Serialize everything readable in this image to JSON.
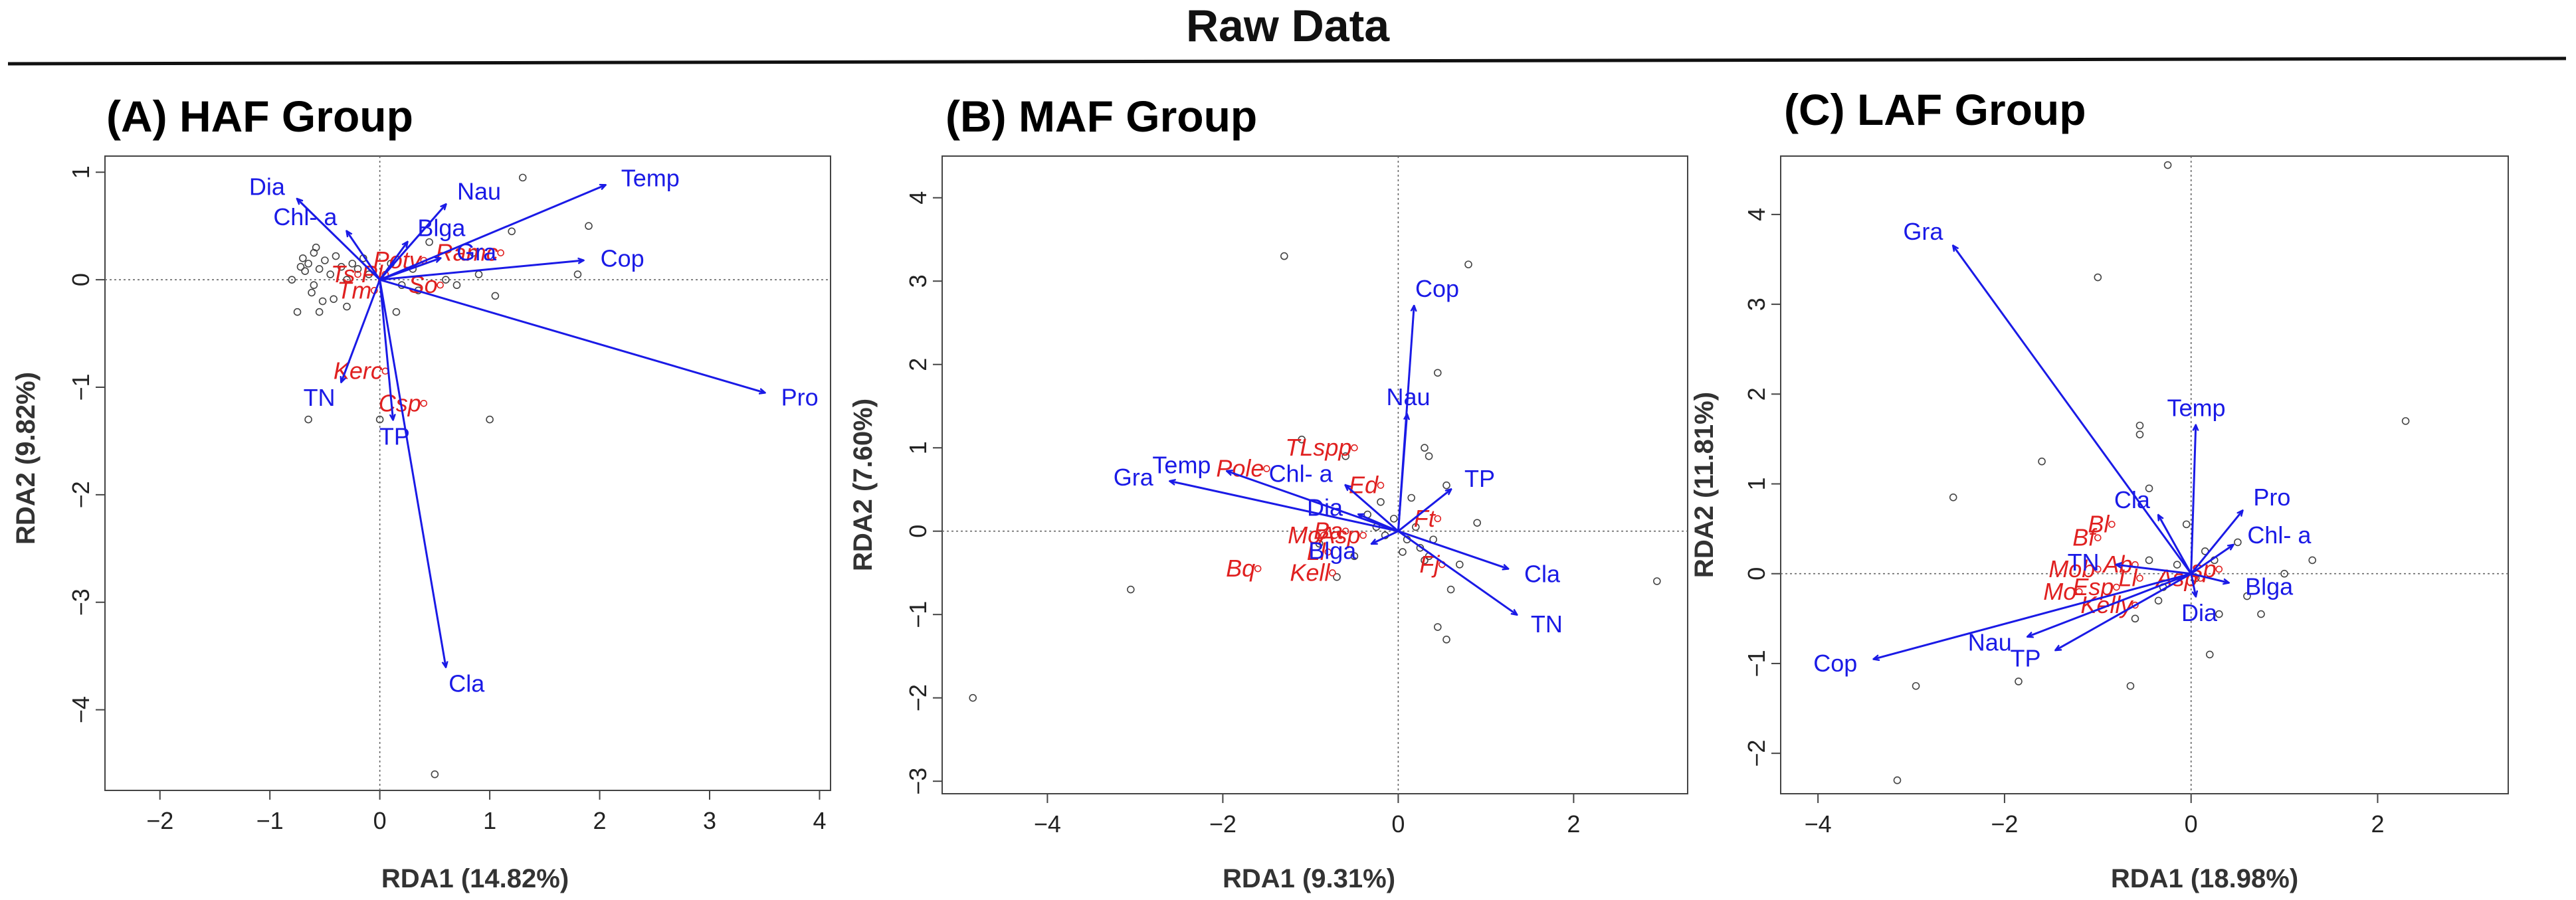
{
  "figure": {
    "title": "Raw Data",
    "colors": {
      "env": "#1a1ae6",
      "species": "#e02020",
      "site": "#444444"
    }
  },
  "chart_data": [
    {
      "type": "scatter",
      "title": "(A) HAF Group",
      "xlabel": "RDA1 (14.82%)",
      "ylabel": "RDA2 (9.82%)",
      "xlim": [
        -2.5,
        4.1
      ],
      "ylim": [
        -4.75,
        1.15
      ],
      "xticks": [
        -2,
        -1,
        0,
        1,
        2,
        3,
        4
      ],
      "yticks": [
        -4,
        -3,
        -2,
        -1,
        0,
        1
      ],
      "env_arrows": [
        {
          "label": "Dia",
          "x": -0.75,
          "y": 0.75
        },
        {
          "label": "Chl- a",
          "x": -0.3,
          "y": 0.45
        },
        {
          "label": "Blga",
          "x": 0.25,
          "y": 0.35
        },
        {
          "label": "Nau",
          "x": 0.6,
          "y": 0.7
        },
        {
          "label": "Temp",
          "x": 2.05,
          "y": 0.88
        },
        {
          "label": "Gra",
          "x": 0.55,
          "y": 0.2
        },
        {
          "label": "Cop",
          "x": 1.85,
          "y": 0.18
        },
        {
          "label": "Pro",
          "x": 3.5,
          "y": -1.05
        },
        {
          "label": "TN",
          "x": -0.35,
          "y": -0.95
        },
        {
          "label": "TP",
          "x": 0.12,
          "y": -1.3
        },
        {
          "label": "Cla",
          "x": 0.6,
          "y": -3.6
        }
      ],
      "species": [
        {
          "label": "Ramc",
          "x": 1.1,
          "y": 0.25
        },
        {
          "label": "Potv",
          "x": 0.4,
          "y": 0.18
        },
        {
          "label": "Ts",
          "x": -0.2,
          "y": 0.05
        },
        {
          "label": "Pl",
          "x": 0.05,
          "y": 0.05
        },
        {
          "label": "Tm",
          "x": -0.05,
          "y": -0.1
        },
        {
          "label": "So",
          "x": 0.55,
          "y": -0.05
        },
        {
          "label": "Kerc",
          "x": 0.05,
          "y": -0.85
        },
        {
          "label": "Csp",
          "x": 0.4,
          "y": -1.15
        }
      ],
      "sites": [
        [
          1.3,
          0.95
        ],
        [
          1.2,
          0.45
        ],
        [
          1.9,
          0.5
        ],
        [
          1.8,
          0.05
        ],
        [
          1.0,
          -1.3
        ],
        [
          0.0,
          -1.3
        ],
        [
          0.5,
          -4.6
        ],
        [
          -0.65,
          -1.3
        ],
        [
          -0.55,
          -0.3
        ],
        [
          -0.6,
          -0.05
        ],
        [
          -0.75,
          -0.3
        ],
        [
          -0.7,
          0.2
        ],
        [
          -0.65,
          0.15
        ],
        [
          -0.6,
          0.25
        ],
        [
          -0.55,
          0.1
        ],
        [
          -0.5,
          0.18
        ],
        [
          -0.45,
          0.05
        ],
        [
          -0.4,
          0.22
        ],
        [
          -0.35,
          0.12
        ],
        [
          -0.3,
          0.0
        ],
        [
          -0.25,
          0.15
        ],
        [
          -0.2,
          0.1
        ],
        [
          -0.15,
          0.2
        ],
        [
          -0.1,
          0.05
        ],
        [
          0.1,
          0.15
        ],
        [
          0.2,
          -0.05
        ],
        [
          0.3,
          0.1
        ],
        [
          0.35,
          -0.1
        ],
        [
          0.6,
          0.0
        ],
        [
          0.7,
          -0.05
        ],
        [
          0.9,
          0.05
        ],
        [
          -0.68,
          0.08
        ],
        [
          -0.62,
          -0.12
        ],
        [
          -0.52,
          -0.2
        ],
        [
          -0.58,
          0.3
        ],
        [
          -0.72,
          0.12
        ],
        [
          -0.42,
          -0.18
        ],
        [
          -0.3,
          -0.25
        ],
        [
          0.15,
          -0.3
        ],
        [
          0.45,
          0.35
        ],
        [
          0.85,
          0.25
        ],
        [
          -0.8,
          0.0
        ],
        [
          1.05,
          -0.15
        ]
      ]
    },
    {
      "type": "scatter",
      "title": "(B) MAF Group",
      "xlabel": "RDA1 (9.31%)",
      "ylabel": "RDA2 (7.60%)",
      "xlim": [
        -5.2,
        3.3
      ],
      "ylim": [
        -3.15,
        4.5
      ],
      "xticks": [
        -4,
        -2,
        0,
        2
      ],
      "yticks": [
        -3,
        -2,
        -1,
        0,
        1,
        2,
        3,
        4
      ],
      "env_arrows": [
        {
          "label": "Cop",
          "x": 0.18,
          "y": 2.7
        },
        {
          "label": "Nau",
          "x": 0.1,
          "y": 1.4
        },
        {
          "label": "TP",
          "x": 0.6,
          "y": 0.5
        },
        {
          "label": "Temp",
          "x": -1.95,
          "y": 0.72
        },
        {
          "label": "Gra",
          "x": -2.6,
          "y": 0.6
        },
        {
          "label": "Chl- a",
          "x": -0.6,
          "y": 0.55
        },
        {
          "label": "Dia",
          "x": -0.45,
          "y": 0.2
        },
        {
          "label": "Blga",
          "x": -0.3,
          "y": -0.15
        },
        {
          "label": "Cla",
          "x": 1.25,
          "y": -0.45
        },
        {
          "label": "TN",
          "x": 1.35,
          "y": -1.0
        }
      ],
      "species": [
        {
          "label": "TLspp",
          "x": -0.5,
          "y": 1.0
        },
        {
          "label": "Pole",
          "x": -1.5,
          "y": 0.75
        },
        {
          "label": "Ed",
          "x": -0.2,
          "y": 0.55
        },
        {
          "label": "Ft",
          "x": 0.45,
          "y": 0.15
        },
        {
          "label": "Fj",
          "x": 0.5,
          "y": -0.4
        },
        {
          "label": "Mo",
          "x": -0.85,
          "y": -0.05
        },
        {
          "label": "Ba",
          "x": -0.6,
          "y": 0.0
        },
        {
          "label": "Asp",
          "x": -0.4,
          "y": -0.05
        },
        {
          "label": "Ll",
          "x": -0.8,
          "y": -0.25
        },
        {
          "label": "Bq",
          "x": -1.6,
          "y": -0.45
        },
        {
          "label": "Kell",
          "x": -0.75,
          "y": -0.5
        }
      ],
      "sites": [
        [
          -1.3,
          3.3
        ],
        [
          0.8,
          3.2
        ],
        [
          0.45,
          1.9
        ],
        [
          -1.1,
          1.1
        ],
        [
          -0.6,
          0.9
        ],
        [
          0.3,
          1.0
        ],
        [
          0.35,
          0.9
        ],
        [
          0.15,
          0.4
        ],
        [
          0.55,
          0.55
        ],
        [
          0.9,
          0.1
        ],
        [
          -0.2,
          0.35
        ],
        [
          -0.35,
          0.2
        ],
        [
          -0.15,
          -0.05
        ],
        [
          0.1,
          -0.1
        ],
        [
          0.25,
          -0.2
        ],
        [
          0.35,
          -0.3
        ],
        [
          0.4,
          -0.1
        ],
        [
          -0.5,
          -0.3
        ],
        [
          -0.9,
          -0.15
        ],
        [
          0.6,
          -0.7
        ],
        [
          0.45,
          -1.15
        ],
        [
          0.55,
          -1.3
        ],
        [
          -3.05,
          -0.7
        ],
        [
          -4.85,
          -2.0
        ],
        [
          2.95,
          -0.6
        ],
        [
          0.05,
          -0.25
        ],
        [
          -0.25,
          0.05
        ],
        [
          0.2,
          0.05
        ],
        [
          -0.05,
          0.15
        ],
        [
          0.3,
          -0.35
        ],
        [
          -0.7,
          -0.55
        ],
        [
          0.7,
          -0.4
        ]
      ]
    },
    {
      "type": "scatter",
      "title": "(C) LAF Group",
      "xlabel": "RDA1 (18.98%)",
      "ylabel": "RDA2 (11.81%)",
      "xlim": [
        -4.4,
        3.4
      ],
      "ylim": [
        -2.45,
        4.65
      ],
      "xticks": [
        -4,
        -2,
        0,
        2
      ],
      "yticks": [
        -2,
        -1,
        0,
        1,
        2,
        3,
        4
      ],
      "env_arrows": [
        {
          "label": "Gra",
          "x": -2.55,
          "y": 3.65
        },
        {
          "label": "Temp",
          "x": 0.05,
          "y": 1.65
        },
        {
          "label": "Cla",
          "x": -0.35,
          "y": 0.65
        },
        {
          "label": "Pro",
          "x": 0.55,
          "y": 0.7
        },
        {
          "label": "Chl- a",
          "x": 0.45,
          "y": 0.32
        },
        {
          "label": "Blga",
          "x": 0.4,
          "y": -0.1
        },
        {
          "label": "Dia",
          "x": 0.05,
          "y": -0.25
        },
        {
          "label": "TN",
          "x": -0.8,
          "y": 0.1
        },
        {
          "label": "TP",
          "x": -1.45,
          "y": -0.85
        },
        {
          "label": "Nau",
          "x": -1.75,
          "y": -0.7
        },
        {
          "label": "Cop",
          "x": -3.4,
          "y": -0.95
        }
      ],
      "species": [
        {
          "label": "Bl",
          "x": -0.85,
          "y": 0.55
        },
        {
          "label": "Bf",
          "x": -1.0,
          "y": 0.4
        },
        {
          "label": "Ab",
          "x": -0.6,
          "y": 0.1
        },
        {
          "label": "Mob",
          "x": -1.0,
          "y": 0.05
        },
        {
          "label": "Ll",
          "x": -0.55,
          "y": -0.05
        },
        {
          "label": "Asp",
          "x": 0.1,
          "y": -0.05
        },
        {
          "label": "Mo",
          "x": -1.2,
          "y": -0.2
        },
        {
          "label": "Esp",
          "x": -0.8,
          "y": -0.15
        },
        {
          "label": "Kelly",
          "x": -0.6,
          "y": -0.35
        },
        {
          "label": "sp",
          "x": 0.3,
          "y": 0.05
        }
      ],
      "sites": [
        [
          -0.25,
          4.55
        ],
        [
          -0.55,
          1.65
        ],
        [
          -0.55,
          1.55
        ],
        [
          -0.45,
          0.95
        ],
        [
          -1.6,
          1.25
        ],
        [
          -2.55,
          0.85
        ],
        [
          -0.05,
          0.55
        ],
        [
          0.15,
          0.25
        ],
        [
          0.5,
          0.35
        ],
        [
          1.0,
          0.0
        ],
        [
          1.3,
          0.15
        ],
        [
          0.3,
          -0.45
        ],
        [
          0.2,
          -0.9
        ],
        [
          -0.65,
          -1.25
        ],
        [
          -1.85,
          -1.2
        ],
        [
          -2.95,
          -1.25
        ],
        [
          -3.15,
          -2.3
        ],
        [
          0.75,
          -0.45
        ],
        [
          -0.3,
          -0.15
        ],
        [
          -0.15,
          0.1
        ],
        [
          0.05,
          -0.05
        ],
        [
          -0.45,
          0.15
        ],
        [
          2.3,
          1.7
        ],
        [
          -0.35,
          -0.3
        ],
        [
          0.25,
          0.15
        ],
        [
          -1.0,
          3.3
        ],
        [
          0.6,
          -0.25
        ],
        [
          -0.6,
          -0.5
        ]
      ]
    }
  ]
}
